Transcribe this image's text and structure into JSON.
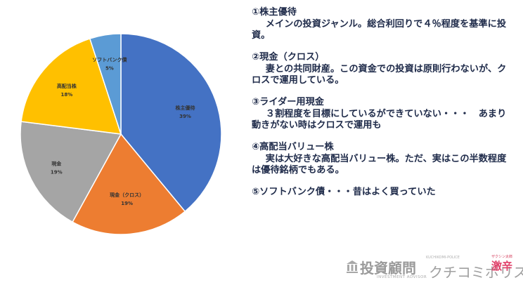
{
  "chart_data": {
    "type": "pie",
    "categories": [
      "株主優待",
      "現金（クロス）",
      "現金",
      "高配当株",
      "ソフトバンク債"
    ],
    "values": [
      39,
      19,
      19,
      18,
      5
    ],
    "percent_labels": [
      "39%",
      "19%",
      "19%",
      "18%",
      "5%"
    ],
    "colors": [
      "#4472c4",
      "#ed7d31",
      "#a5a5a5",
      "#ffc000",
      "#5b9bd5"
    ],
    "title": "",
    "legend": "none"
  },
  "notes": [
    {
      "title": "①株主優待",
      "body": "メインの投資ジャンル。総合利回りで４％程度を基準に投資。"
    },
    {
      "title": "②現金（クロス）",
      "body": "妻との共同財産。この資金での投資は原則行わないが、クロスで運用している。"
    },
    {
      "title": "③ライダー用現金",
      "body": "３割程度を目標にしているができていない・・・　あまり動きがない時はクロスで運用も"
    },
    {
      "title": "④高配当バリュー株",
      "body": "実は大好きな高配当バリュー株。ただ、実はこの半数程度は優待銘柄でもある。"
    },
    {
      "title": "⑤ソフトバンク債・・・昔はよく買っていた",
      "body": ""
    }
  ],
  "footer": {
    "brand": "投資顧問",
    "brand_sub": "INVESTMENT ADVISOR",
    "kuchikomi_en": "KUCHIKOMI-POLICE",
    "kuchikomi": "クチコミポリス",
    "stamp_top": "ザクシン太郎",
    "stamp_main": "激辛"
  }
}
